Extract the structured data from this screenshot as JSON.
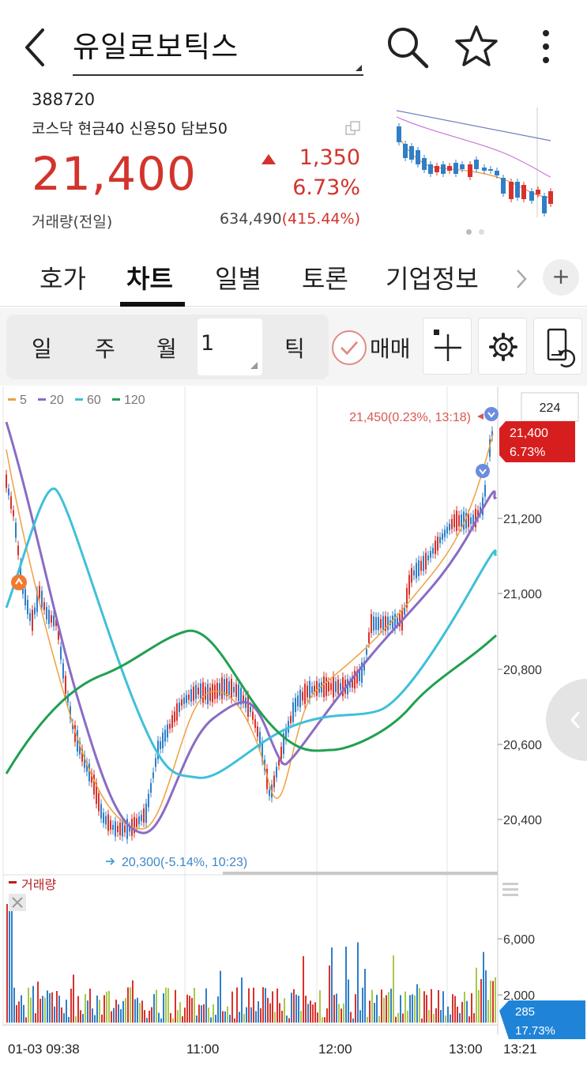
{
  "header": {
    "title": "유일로보틱스",
    "back_icon": "chevron-left-icon",
    "search_icon": "search-icon",
    "star_icon": "star-icon",
    "more_icon": "more-vertical-icon"
  },
  "stock": {
    "code": "388720",
    "market": "코스닥 현금40 신용50 담보50",
    "price": "21,400",
    "change": "1,350",
    "change_pct": "6.73%",
    "volume_label": "거래량(전일)",
    "volume_value": "634,490",
    "volume_ratio": "(415.44%)",
    "up_color": "#d2342d"
  },
  "tabs": [
    {
      "label": "호가"
    },
    {
      "label": "차트"
    },
    {
      "label": "일별"
    },
    {
      "label": "토론"
    },
    {
      "label": "기업정보"
    }
  ],
  "active_tab": 1,
  "toolbar": {
    "periods": [
      "일",
      "주",
      "월"
    ],
    "input_value": "1",
    "tick_label": "틱",
    "trade_label": "매매"
  },
  "chart": {
    "ma_legend": [
      {
        "label": "5",
        "color": "#f0a040"
      },
      {
        "label": "20",
        "color": "#8a6cc4"
      },
      {
        "label": "60",
        "color": "#3fc0d8"
      },
      {
        "label": "120",
        "color": "#20a050"
      }
    ],
    "count_badge": "224",
    "high_annot": "21,450(0.23%, 13:18)",
    "low_annot": "20,300(-5.14%, 10:23)",
    "current_price": "21,400",
    "current_pct": "6.73%",
    "price_ticks": [
      "21,200",
      "21,000",
      "20,800",
      "20,600",
      "20,400"
    ],
    "volume_legend": "거래량",
    "volume_ticks": [
      "6,000",
      "2,000"
    ],
    "volume_current": "285",
    "volume_pct": "17.73%",
    "time_labels": [
      "01-03 09:38",
      "11:00",
      "12:00",
      "13:00",
      "13:21"
    ]
  }
}
